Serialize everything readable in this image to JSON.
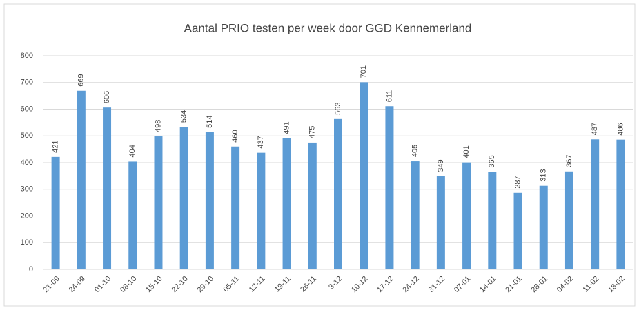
{
  "chart_data": {
    "type": "bar",
    "title": "Aantal PRIO testen  per week door GGD Kennemerland",
    "categories": [
      "21-09",
      "24-09",
      "01-10",
      "08-10",
      "15-10",
      "22-10",
      "29-10",
      "05-11",
      "12-11",
      "19-11",
      "26-11",
      "3-12",
      "10-12",
      "17-12",
      "24-12",
      "31-12",
      "07-01",
      "14-01",
      "21-01",
      "28-01",
      "04-02",
      "11-02",
      "18-02"
    ],
    "values": [
      421,
      669,
      606,
      404,
      498,
      534,
      514,
      460,
      437,
      491,
      475,
      563,
      701,
      611,
      405,
      349,
      401,
      365,
      287,
      313,
      367,
      487,
      486
    ],
    "color": "#5b9bd5",
    "ylim": [
      0,
      800
    ],
    "yticks": [
      0,
      100,
      200,
      300,
      400,
      500,
      600,
      700,
      800
    ],
    "grid": true
  }
}
